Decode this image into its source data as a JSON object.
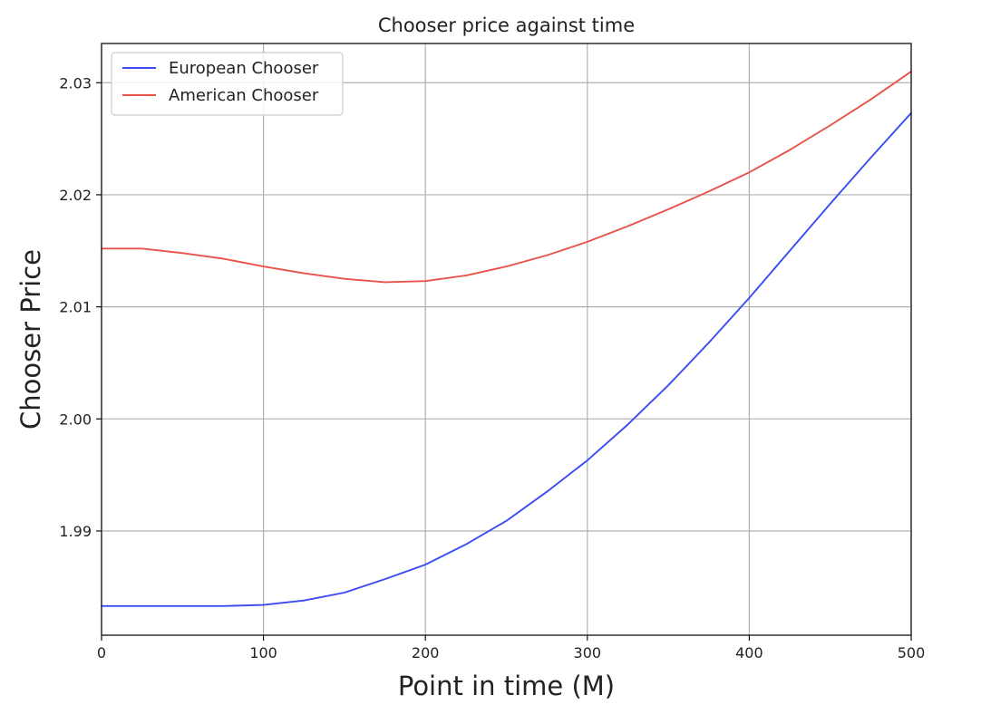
{
  "chart_data": {
    "type": "line",
    "title": "Chooser price against time",
    "xlabel": "Point in time (M)",
    "ylabel": "Chooser Price",
    "xlim": [
      0,
      500
    ],
    "ylim": [
      1.9807,
      2.0335
    ],
    "xticks": [
      0,
      100,
      200,
      300,
      400,
      500
    ],
    "yticks": [
      1.99,
      2.0,
      2.01,
      2.02,
      2.03
    ],
    "ytick_labels": [
      "1.99",
      "2.00",
      "2.01",
      "2.02",
      "2.03"
    ],
    "grid": true,
    "legend_position": "top-left",
    "series": [
      {
        "name": "European Chooser",
        "color": "#3b4cf2",
        "x": [
          0,
          25,
          50,
          75,
          100,
          125,
          150,
          175,
          200,
          225,
          250,
          275,
          300,
          325,
          350,
          375,
          400,
          425,
          450,
          475,
          500
        ],
        "y": [
          1.9833,
          1.9833,
          1.9833,
          1.9833,
          1.9834,
          1.9838,
          1.9845,
          1.9857,
          1.987,
          1.9888,
          1.9909,
          1.9935,
          1.9963,
          1.9995,
          2.003,
          2.0068,
          2.0108,
          2.015,
          2.0192,
          2.0233,
          2.0273
        ]
      },
      {
        "name": "American Chooser",
        "color": "#e8534a",
        "x": [
          0,
          25,
          50,
          75,
          100,
          125,
          150,
          175,
          200,
          225,
          250,
          275,
          300,
          325,
          350,
          375,
          400,
          425,
          450,
          475,
          500
        ],
        "y": [
          2.0152,
          2.0152,
          2.0148,
          2.0143,
          2.0136,
          2.013,
          2.0125,
          2.0122,
          2.0123,
          2.0128,
          2.0136,
          2.0146,
          2.0158,
          2.0172,
          2.0187,
          2.0203,
          2.022,
          2.024,
          2.0262,
          2.0285,
          2.031
        ]
      }
    ]
  }
}
